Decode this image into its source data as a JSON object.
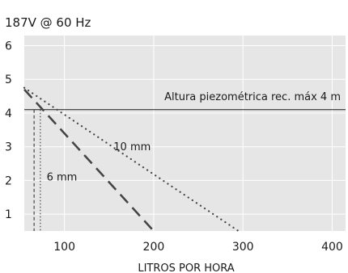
{
  "chart_data": {
    "type": "line",
    "title": "187V @ 60 Hz",
    "xlabel": "LITROS POR HORA",
    "ylabel": "",
    "xlim": [
      55,
      415
    ],
    "ylim": [
      0.5,
      6.3
    ],
    "xticks": [
      100,
      200,
      300,
      400
    ],
    "yticks": [
      1,
      2,
      3,
      4,
      5,
      6
    ],
    "grid": true,
    "series": [
      {
        "name": "10 mm",
        "style": "dotted",
        "color": "#444444",
        "x": [
          55,
          295
        ],
        "y": [
          4.75,
          0.5
        ]
      },
      {
        "name": "6 mm",
        "style": "dashed",
        "color": "#444444",
        "x": [
          55,
          200
        ],
        "y": [
          4.7,
          0.5
        ]
      }
    ],
    "reference_line": {
      "y": 4.1,
      "label": "Altura piezométrica rec. máx 4 m"
    },
    "vertical_markers": [
      {
        "x": 66,
        "style": "dashed"
      },
      {
        "x": 73,
        "style": "dotted"
      }
    ],
    "colors": {
      "plot_bg": "#e6e6e6",
      "grid": "#ffffff",
      "line": "#444444"
    }
  }
}
